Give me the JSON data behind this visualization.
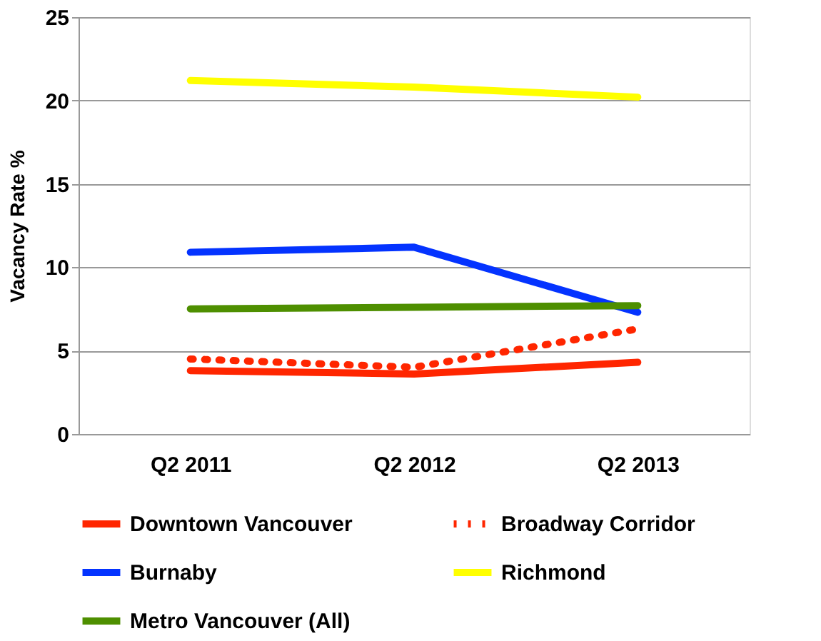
{
  "chart_data": {
    "type": "line",
    "ylabel": "Vacancy Rate %",
    "categories": [
      "Q2 2011",
      "Q2 2012",
      "Q2 2013"
    ],
    "ylim": [
      0,
      25
    ],
    "yticks": [
      0,
      5,
      10,
      15,
      20,
      25
    ],
    "grid": "y",
    "legend": "bottom",
    "marker": "none",
    "series": [
      {
        "name": "Downtown Vancouver",
        "color": "#ff2600",
        "line_style": "solid",
        "values": [
          3.8,
          3.6,
          4.3
        ]
      },
      {
        "name": "Broadway Corridor",
        "color": "#ff2600",
        "line_style": "dotted",
        "values": [
          4.5,
          4.0,
          6.3
        ]
      },
      {
        "name": "Burnaby",
        "color": "#0433ff",
        "line_style": "solid",
        "values": [
          10.9,
          11.2,
          7.3
        ]
      },
      {
        "name": "Richmond",
        "color": "#ffff00",
        "line_style": "solid",
        "values": [
          21.2,
          20.8,
          20.2
        ]
      },
      {
        "name": "Metro Vancouver (All)",
        "color": "#4e8f00",
        "line_style": "solid",
        "values": [
          7.5,
          7.6,
          7.7
        ]
      }
    ]
  }
}
